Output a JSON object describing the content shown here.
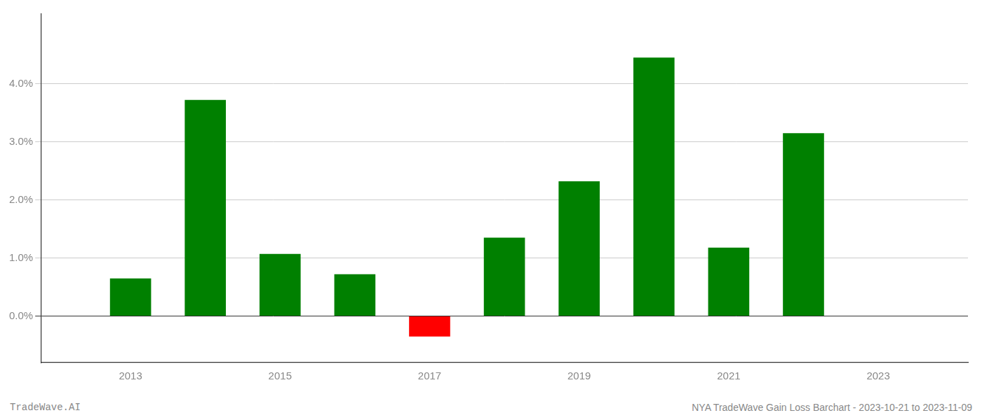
{
  "chart_data": {
    "type": "bar",
    "x": [
      2013,
      2014,
      2015,
      2016,
      2017,
      2018,
      2019,
      2020,
      2021,
      2022
    ],
    "values": [
      0.0065,
      0.0372,
      0.0107,
      0.0072,
      -0.0035,
      0.0135,
      0.0232,
      0.0445,
      0.0118,
      0.0315
    ],
    "colors": [
      "#008000",
      "#008000",
      "#008000",
      "#008000",
      "#ff0000",
      "#008000",
      "#008000",
      "#008000",
      "#008000",
      "#008000"
    ],
    "xlim": [
      2011.8,
      2024.2
    ],
    "xticks": [
      2013,
      2015,
      2017,
      2019,
      2021,
      2023
    ],
    "ylim": [
      -0.008,
      0.052
    ],
    "yticks": [
      {
        "value": 0.0,
        "label": "0.0%"
      },
      {
        "value": 0.01,
        "label": "1.0%"
      },
      {
        "value": 0.02,
        "label": "2.0%"
      },
      {
        "value": 0.03,
        "label": "3.0%"
      },
      {
        "value": 0.04,
        "label": "4.0%"
      }
    ],
    "grid": true,
    "annotations": [
      "TradeWave.AI",
      "NYA TradeWave Gain Loss Barchart - 2023-10-21 to 2023-11-09"
    ]
  }
}
